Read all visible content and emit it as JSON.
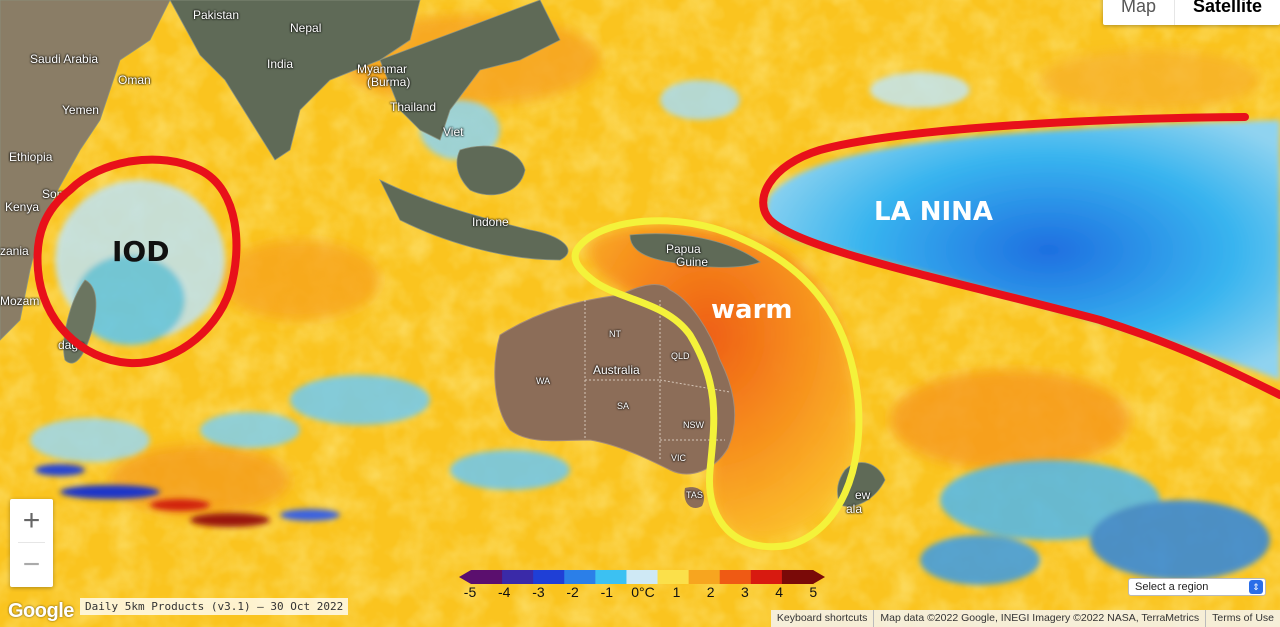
{
  "map_type": {
    "options": [
      "Map",
      "Satellite"
    ],
    "active": "Satellite"
  },
  "countries": {
    "pakistan": "Pakistan",
    "nepal": "Nepal",
    "saudi": "Saudi Arabia",
    "india": "India",
    "oman": "Oman",
    "myanmar_1": "Myanmar",
    "myanmar_2": "(Burma)",
    "yemen": "Yemen",
    "thailand": "Thailand",
    "viet": "Viet",
    "ethiopia": "Ethiopia",
    "somalia": "Som",
    "kenya": "Kenya",
    "indonesia": "Indone",
    "zambia": "zania",
    "papua_1": "Papua",
    "papua_2": "Guine",
    "mozambique": "Mozam",
    "madagascar": "daga",
    "new_zealand": "ew",
    "nz_2": "ala"
  },
  "australia": {
    "name": "Australia",
    "states": {
      "nt": "NT",
      "qld": "QLD",
      "wa": "WA",
      "sa": "SA",
      "nsw": "NSW",
      "vic": "VIC",
      "tas": "TAS"
    }
  },
  "annotations": {
    "iod": "IOD",
    "la_nina": "LA NINA",
    "warm": "warm"
  },
  "annotation_colors": {
    "iod_ring": "#e8101a",
    "la_nina_ring": "#e8101a",
    "warm_ring": "#f4f23a"
  },
  "colorbar": {
    "labels": [
      "-5",
      "-4",
      "-3",
      "-2",
      "-1",
      "0°C",
      "1",
      "2",
      "3",
      "4",
      "5"
    ],
    "colors": [
      "#5b0f6e",
      "#3a2aa8",
      "#1f3fd6",
      "#2b7fe8",
      "#3cc1f2",
      "#cfe9f5",
      "#fbe04a",
      "#f7a51f",
      "#ef5a14",
      "#d81a10",
      "#7a0a08"
    ]
  },
  "zoom": {
    "in": "+",
    "out": "−"
  },
  "google_logo": "Google",
  "product_label": "Daily 5km Products (v3.1) — 30 Oct 2022",
  "region_select": {
    "value": "Select a region",
    "chevron": "⇕"
  },
  "attribution": {
    "shortcuts": "Keyboard shortcuts",
    "map_data": "Map data ©2022 Google, INEGI Imagery ©2022 NASA, TerraMetrics",
    "terms": "Terms of Use"
  }
}
